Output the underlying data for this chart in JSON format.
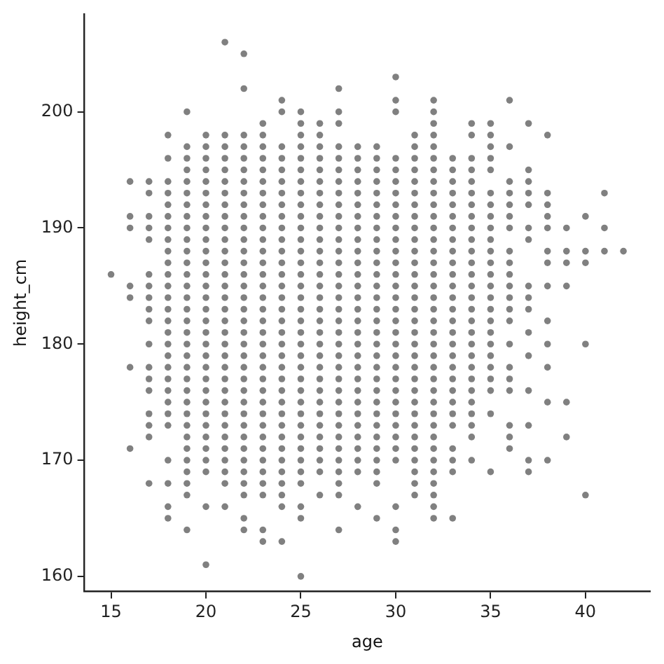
{
  "chart_data": {
    "type": "scatter",
    "xlabel": "age",
    "ylabel": "height_cm",
    "xlim": [
      13.6,
      43.4
    ],
    "ylim": [
      158.7,
      208.4
    ],
    "xticks": [
      15,
      20,
      25,
      30,
      35,
      40
    ],
    "yticks": [
      160,
      170,
      180,
      190,
      200
    ],
    "grid": false,
    "legend": false,
    "marker": "circle",
    "series": [
      {
        "color": "#808080",
        "x": [
          15,
          16,
          16,
          16,
          16,
          16,
          16,
          16,
          17,
          17,
          17,
          17,
          17,
          17,
          17,
          17,
          17,
          17,
          17,
          17,
          17,
          17,
          17,
          17,
          17,
          17,
          18,
          18,
          18,
          18,
          18,
          18,
          18,
          18,
          18,
          18,
          18,
          18,
          18,
          18,
          18,
          18,
          18,
          18,
          18,
          18,
          18,
          18,
          18,
          18,
          18,
          18,
          18,
          18,
          19,
          19,
          19,
          19,
          19,
          19,
          19,
          19,
          19,
          19,
          19,
          19,
          19,
          19,
          19,
          19,
          19,
          19,
          19,
          19,
          19,
          19,
          19,
          19,
          19,
          19,
          19,
          19,
          19,
          19,
          19,
          19,
          19,
          20,
          20,
          20,
          20,
          20,
          20,
          20,
          20,
          20,
          20,
          20,
          20,
          20,
          20,
          20,
          20,
          20,
          20,
          20,
          20,
          20,
          20,
          20,
          20,
          20,
          20,
          20,
          20,
          20,
          20,
          20,
          20,
          21,
          21,
          21,
          21,
          21,
          21,
          21,
          21,
          21,
          21,
          21,
          21,
          21,
          21,
          21,
          21,
          21,
          21,
          21,
          21,
          21,
          21,
          21,
          21,
          21,
          21,
          21,
          21,
          21,
          21,
          21,
          21,
          21,
          22,
          22,
          22,
          22,
          22,
          22,
          22,
          22,
          22,
          22,
          22,
          22,
          22,
          22,
          22,
          22,
          22,
          22,
          22,
          22,
          22,
          22,
          22,
          22,
          22,
          22,
          22,
          22,
          22,
          22,
          22,
          22,
          22,
          22,
          22,
          22,
          23,
          23,
          23,
          23,
          23,
          23,
          23,
          23,
          23,
          23,
          23,
          23,
          23,
          23,
          23,
          23,
          23,
          23,
          23,
          23,
          23,
          23,
          23,
          23,
          23,
          23,
          23,
          23,
          23,
          23,
          23,
          23,
          23,
          23,
          23,
          24,
          24,
          24,
          24,
          24,
          24,
          24,
          24,
          24,
          24,
          24,
          24,
          24,
          24,
          24,
          24,
          24,
          24,
          24,
          24,
          24,
          24,
          24,
          24,
          24,
          24,
          24,
          24,
          24,
          24,
          24,
          24,
          24,
          24,
          24,
          25,
          25,
          25,
          25,
          25,
          25,
          25,
          25,
          25,
          25,
          25,
          25,
          25,
          25,
          25,
          25,
          25,
          25,
          25,
          25,
          25,
          25,
          25,
          25,
          25,
          25,
          25,
          25,
          25,
          25,
          25,
          25,
          25,
          25,
          25,
          25,
          26,
          26,
          26,
          26,
          26,
          26,
          26,
          26,
          26,
          26,
          26,
          26,
          26,
          26,
          26,
          26,
          26,
          26,
          26,
          26,
          26,
          26,
          26,
          26,
          26,
          26,
          26,
          26,
          26,
          26,
          26,
          26,
          27,
          27,
          27,
          27,
          27,
          27,
          27,
          27,
          27,
          27,
          27,
          27,
          27,
          27,
          27,
          27,
          27,
          27,
          27,
          27,
          27,
          27,
          27,
          27,
          27,
          27,
          27,
          27,
          27,
          27,
          27,
          27,
          27,
          27,
          27,
          28,
          28,
          28,
          28,
          28,
          28,
          28,
          28,
          28,
          28,
          28,
          28,
          28,
          28,
          28,
          28,
          28,
          28,
          28,
          28,
          28,
          28,
          28,
          28,
          28,
          28,
          28,
          28,
          28,
          28,
          29,
          29,
          29,
          29,
          29,
          29,
          29,
          29,
          29,
          29,
          29,
          29,
          29,
          29,
          29,
          29,
          29,
          29,
          29,
          29,
          29,
          29,
          29,
          29,
          29,
          29,
          29,
          29,
          29,
          29,
          29,
          30,
          30,
          30,
          30,
          30,
          30,
          30,
          30,
          30,
          30,
          30,
          30,
          30,
          30,
          30,
          30,
          30,
          30,
          30,
          30,
          30,
          30,
          30,
          30,
          30,
          30,
          30,
          30,
          30,
          30,
          30,
          30,
          30,
          31,
          31,
          31,
          31,
          31,
          31,
          31,
          31,
          31,
          31,
          31,
          31,
          31,
          31,
          31,
          31,
          31,
          31,
          31,
          31,
          31,
          31,
          31,
          31,
          31,
          31,
          31,
          31,
          31,
          31,
          31,
          31,
          32,
          32,
          32,
          32,
          32,
          32,
          32,
          32,
          32,
          32,
          32,
          32,
          32,
          32,
          32,
          32,
          32,
          32,
          32,
          32,
          32,
          32,
          32,
          32,
          32,
          32,
          32,
          32,
          32,
          32,
          32,
          32,
          32,
          32,
          32,
          32,
          32,
          33,
          33,
          33,
          33,
          33,
          33,
          33,
          33,
          33,
          33,
          33,
          33,
          33,
          33,
          33,
          33,
          33,
          33,
          33,
          33,
          33,
          33,
          33,
          33,
          33,
          33,
          33,
          33,
          34,
          34,
          34,
          34,
          34,
          34,
          34,
          34,
          34,
          34,
          34,
          34,
          34,
          34,
          34,
          34,
          34,
          34,
          34,
          34,
          34,
          34,
          34,
          34,
          34,
          34,
          34,
          34,
          35,
          35,
          35,
          35,
          35,
          35,
          35,
          35,
          35,
          35,
          35,
          35,
          35,
          35,
          35,
          35,
          35,
          35,
          35,
          35,
          35,
          35,
          35,
          35,
          35,
          36,
          36,
          36,
          36,
          36,
          36,
          36,
          36,
          36,
          36,
          36,
          36,
          36,
          36,
          36,
          36,
          36,
          36,
          36,
          36,
          36,
          37,
          37,
          37,
          37,
          37,
          37,
          37,
          37,
          37,
          37,
          37,
          37,
          37,
          37,
          37,
          37,
          38,
          38,
          38,
          38,
          38,
          38,
          38,
          38,
          38,
          38,
          38,
          38,
          38,
          39,
          39,
          39,
          39,
          39,
          39,
          40,
          40,
          40,
          40,
          40,
          41,
          41,
          41,
          42
        ],
        "values": [
          186,
          194,
          191,
          190,
          185,
          184,
          178,
          171,
          194,
          193,
          191,
          190,
          189,
          186,
          185,
          184,
          183,
          182,
          180,
          178,
          177,
          176,
          174,
          173,
          172,
          168,
          198,
          196,
          194,
          193,
          192,
          191,
          190,
          189,
          188,
          187,
          186,
          185,
          184,
          183,
          182,
          181,
          180,
          179,
          178,
          177,
          176,
          175,
          174,
          173,
          170,
          168,
          166,
          165,
          200,
          197,
          196,
          195,
          194,
          193,
          192,
          191,
          190,
          189,
          188,
          187,
          186,
          185,
          184,
          183,
          182,
          181,
          180,
          179,
          178,
          177,
          176,
          175,
          174,
          173,
          172,
          171,
          170,
          169,
          168,
          167,
          164,
          198,
          197,
          196,
          195,
          194,
          193,
          192,
          191,
          190,
          189,
          188,
          187,
          186,
          185,
          184,
          183,
          182,
          181,
          180,
          179,
          178,
          177,
          176,
          175,
          174,
          173,
          172,
          171,
          170,
          169,
          166,
          161,
          206,
          198,
          197,
          196,
          195,
          194,
          193,
          192,
          191,
          190,
          189,
          188,
          187,
          186,
          185,
          184,
          183,
          182,
          181,
          180,
          179,
          178,
          177,
          176,
          175,
          174,
          173,
          172,
          171,
          170,
          169,
          168,
          166,
          205,
          202,
          198,
          197,
          196,
          195,
          194,
          193,
          192,
          191,
          190,
          189,
          188,
          187,
          186,
          185,
          184,
          183,
          182,
          181,
          180,
          179,
          178,
          177,
          176,
          175,
          174,
          173,
          172,
          171,
          170,
          169,
          168,
          167,
          165,
          164,
          199,
          198,
          197,
          196,
          195,
          194,
          193,
          192,
          191,
          190,
          189,
          188,
          187,
          186,
          185,
          184,
          183,
          182,
          181,
          180,
          179,
          178,
          177,
          176,
          175,
          174,
          173,
          172,
          171,
          170,
          169,
          168,
          167,
          164,
          163,
          201,
          200,
          197,
          196,
          195,
          194,
          193,
          192,
          191,
          190,
          189,
          188,
          187,
          186,
          185,
          184,
          183,
          182,
          181,
          180,
          179,
          178,
          177,
          176,
          175,
          174,
          173,
          172,
          171,
          170,
          169,
          168,
          167,
          166,
          163,
          200,
          199,
          198,
          197,
          196,
          195,
          194,
          193,
          192,
          191,
          190,
          189,
          188,
          187,
          186,
          185,
          184,
          183,
          182,
          181,
          180,
          179,
          178,
          177,
          176,
          175,
          174,
          173,
          172,
          171,
          170,
          169,
          168,
          166,
          165,
          160,
          199,
          198,
          197,
          196,
          195,
          194,
          193,
          192,
          191,
          190,
          189,
          188,
          187,
          186,
          185,
          184,
          183,
          182,
          181,
          180,
          179,
          178,
          177,
          176,
          175,
          174,
          173,
          172,
          171,
          170,
          169,
          167,
          202,
          200,
          199,
          197,
          196,
          195,
          194,
          193,
          192,
          191,
          190,
          189,
          188,
          187,
          186,
          185,
          184,
          183,
          182,
          181,
          180,
          179,
          178,
          177,
          176,
          175,
          174,
          173,
          172,
          171,
          170,
          169,
          168,
          167,
          164,
          197,
          196,
          195,
          194,
          193,
          192,
          191,
          190,
          189,
          188,
          187,
          186,
          185,
          184,
          183,
          182,
          181,
          180,
          179,
          178,
          177,
          176,
          175,
          174,
          173,
          172,
          171,
          170,
          169,
          166,
          197,
          196,
          195,
          194,
          193,
          192,
          191,
          190,
          189,
          188,
          187,
          186,
          185,
          184,
          183,
          182,
          181,
          180,
          179,
          178,
          177,
          176,
          175,
          174,
          173,
          172,
          171,
          170,
          169,
          168,
          165,
          203,
          201,
          200,
          196,
          195,
          194,
          193,
          192,
          191,
          190,
          189,
          188,
          187,
          186,
          185,
          184,
          183,
          182,
          181,
          180,
          179,
          178,
          177,
          176,
          175,
          174,
          173,
          172,
          171,
          170,
          166,
          164,
          163,
          198,
          197,
          196,
          195,
          194,
          193,
          192,
          191,
          190,
          189,
          188,
          187,
          186,
          185,
          184,
          183,
          182,
          181,
          180,
          179,
          178,
          177,
          176,
          175,
          174,
          173,
          172,
          171,
          170,
          169,
          168,
          167,
          201,
          200,
          199,
          198,
          197,
          196,
          195,
          194,
          193,
          192,
          191,
          190,
          189,
          188,
          187,
          186,
          185,
          184,
          183,
          182,
          181,
          180,
          179,
          178,
          177,
          176,
          175,
          174,
          173,
          172,
          171,
          170,
          169,
          168,
          167,
          166,
          165,
          196,
          195,
          194,
          193,
          192,
          191,
          190,
          189,
          188,
          187,
          186,
          185,
          184,
          183,
          182,
          181,
          180,
          179,
          178,
          177,
          176,
          175,
          174,
          173,
          171,
          170,
          169,
          165,
          199,
          198,
          196,
          195,
          194,
          193,
          192,
          191,
          190,
          189,
          188,
          187,
          186,
          185,
          184,
          183,
          182,
          181,
          180,
          179,
          178,
          177,
          176,
          175,
          174,
          173,
          172,
          170,
          199,
          198,
          197,
          196,
          195,
          193,
          192,
          191,
          190,
          189,
          188,
          187,
          186,
          185,
          184,
          183,
          182,
          181,
          180,
          179,
          178,
          177,
          176,
          174,
          169,
          201,
          197,
          194,
          193,
          192,
          191,
          190,
          188,
          187,
          186,
          185,
          184,
          183,
          182,
          180,
          178,
          177,
          176,
          173,
          172,
          171,
          199,
          195,
          194,
          193,
          192,
          190,
          189,
          185,
          184,
          183,
          181,
          179,
          176,
          173,
          170,
          169,
          198,
          193,
          192,
          191,
          190,
          188,
          187,
          185,
          182,
          180,
          178,
          175,
          170,
          190,
          188,
          187,
          185,
          175,
          172,
          191,
          188,
          187,
          180,
          167,
          193,
          190,
          188,
          188
        ]
      }
    ]
  }
}
